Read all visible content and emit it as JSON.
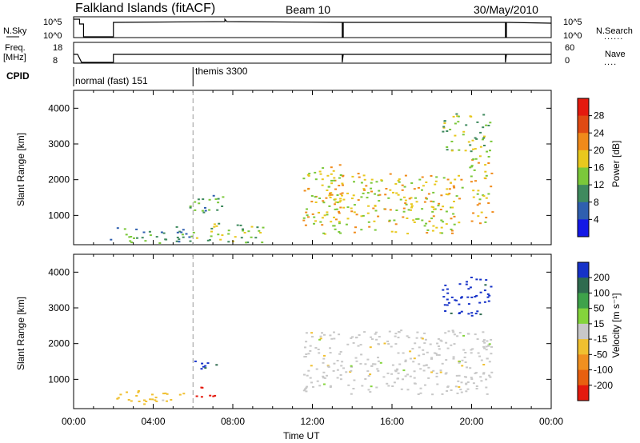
{
  "header": {
    "station": "Falkland Islands (fitACF)",
    "beam": "Beam 10",
    "date": "30/May/2010"
  },
  "status": {
    "nsky_label": "N.Sky",
    "nsearch_label": "N.Search",
    "freq_label_line1": "Freq.",
    "freq_label_line2": "[MHz]",
    "nave_label": "Nave",
    "cpid_label": "CPID",
    "nsky_ticks": [
      "10^5",
      "10^0"
    ],
    "nsearch_ticks": [
      "10^5",
      "10^0"
    ],
    "freq_ticks": [
      "18",
      "8"
    ],
    "nave_ticks": [
      "60",
      "0"
    ],
    "cpid_segments": [
      {
        "label": "normal (fast) 151",
        "start_hour": 0,
        "end_hour": 6
      },
      {
        "label": "themis 3300",
        "start_hour": 6,
        "end_hour": 24
      }
    ]
  },
  "chart_data": [
    {
      "type": "heatmap",
      "name": "power",
      "ylabel": "Slant Range [km]",
      "ylim": [
        180,
        4500
      ],
      "yticks": [
        "1000",
        "2000",
        "3000",
        "4000"
      ],
      "xlim_hours": [
        0,
        24
      ],
      "colorbar_label": "Power [dB]",
      "colorbar_ticks": [
        "4",
        "8",
        "12",
        "16",
        "20",
        "24",
        "28"
      ],
      "colorbar_colors": [
        "#1418e6",
        "#2f5faf",
        "#3f8a5e",
        "#7bc83a",
        "#e8c81e",
        "#f08a1a",
        "#e04a12",
        "#e41a0e"
      ],
      "scatter_features": [
        {
          "t0": 1.8,
          "t1": 6.0,
          "r0": 200,
          "r1": 700,
          "level": 2
        },
        {
          "t0": 5.8,
          "t1": 7.8,
          "r0": 1100,
          "r1": 1650,
          "level": 2
        },
        {
          "t0": 6.0,
          "t1": 9.5,
          "r0": 250,
          "r1": 800,
          "level": 3
        },
        {
          "t0": 11.5,
          "t1": 13.5,
          "r0": 700,
          "r1": 2500,
          "level": 4
        },
        {
          "t0": 12.5,
          "t1": 19.5,
          "r0": 500,
          "r1": 2200,
          "level": 4
        },
        {
          "t0": 18.5,
          "t1": 21.0,
          "r0": 2800,
          "r1": 3900,
          "level": 3
        },
        {
          "t0": 19.8,
          "t1": 21.0,
          "r0": 800,
          "r1": 2700,
          "level": 4
        }
      ]
    },
    {
      "type": "heatmap",
      "name": "velocity",
      "ylabel": "Slant Range [km]",
      "ylim": [
        180,
        4500
      ],
      "yticks": [
        "1000",
        "2000",
        "3000",
        "4000"
      ],
      "xlim_hours": [
        0,
        24
      ],
      "colorbar_label": "Velocity [m s⁻¹]",
      "colorbar_ticks": [
        "200",
        "100",
        "50",
        "15",
        "-15",
        "-50",
        "-100",
        "-200"
      ],
      "colorbar_colors": [
        "#1632c8",
        "#2f6b4f",
        "#3ea24a",
        "#84d43c",
        "#c8c8c8",
        "#f0c030",
        "#f09020",
        "#e86010",
        "#e41a0e"
      ],
      "scatter_features": [
        {
          "t0": 1.8,
          "t1": 5.5,
          "r0": 300,
          "r1": 700,
          "level": 5
        },
        {
          "t0": 6.0,
          "t1": 7.2,
          "r0": 500,
          "r1": 800,
          "level": 8
        },
        {
          "t0": 6.0,
          "t1": 7.5,
          "r0": 1300,
          "r1": 1600,
          "level": 0
        },
        {
          "t0": 11.5,
          "t1": 21.0,
          "r0": 600,
          "r1": 2400,
          "level": 4
        },
        {
          "t0": 18.5,
          "t1": 21.0,
          "r0": 2800,
          "r1": 3900,
          "level": 0
        }
      ]
    }
  ],
  "x_axis": {
    "label": "Time UT",
    "tick_labels": [
      "00:00",
      "04:00",
      "08:00",
      "12:00",
      "16:00",
      "20:00",
      "00:00"
    ]
  }
}
